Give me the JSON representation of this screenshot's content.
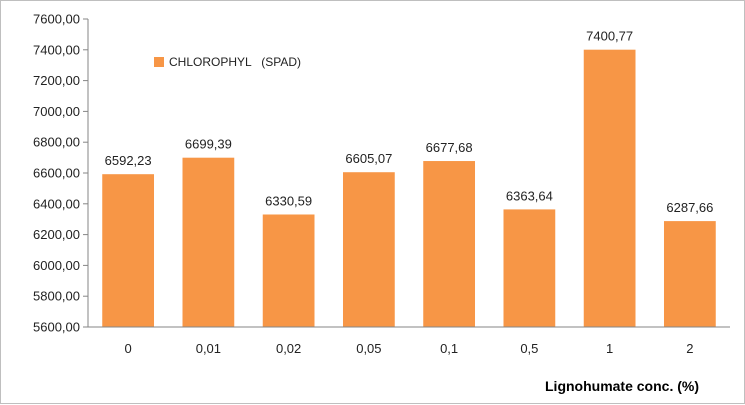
{
  "chart_data": {
    "type": "bar",
    "categories": [
      "0",
      "0,01",
      "0,02",
      "0,05",
      "0,1",
      "0,5",
      "1",
      "2"
    ],
    "series": [
      {
        "name": "CHLOROPHYL   (SPAD)",
        "values": [
          6592.23,
          6699.39,
          6330.59,
          6605.07,
          6677.68,
          6363.64,
          7400.77,
          6287.66
        ]
      }
    ],
    "data_labels": [
      "6592,23",
      "6699,39",
      "6330,59",
      "6605,07",
      "6677,68",
      "6363,64",
      "7400,77",
      "6287,66"
    ],
    "y_ticks": [
      "5600,00",
      "5800,00",
      "6000,00",
      "6200,00",
      "6400,00",
      "6600,00",
      "6800,00",
      "7000,00",
      "7200,00",
      "7400,00",
      "7600,00"
    ],
    "ylim": [
      5600,
      7600
    ],
    "xlabel": "Lignohumate conc. (%)",
    "ylabel": "",
    "title": "",
    "legend_position": "top-left",
    "grid": false,
    "bar_color": "#F79646",
    "axis_color": "#868686"
  }
}
